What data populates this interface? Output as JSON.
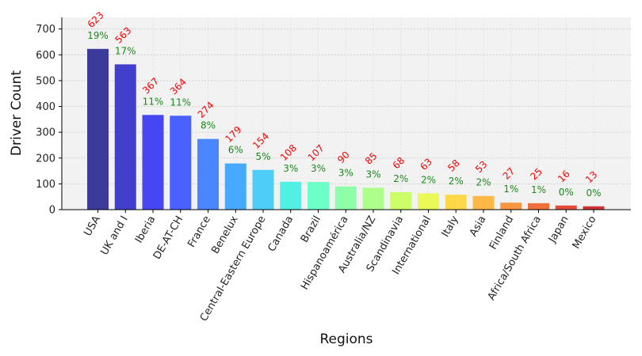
{
  "chart_data": {
    "type": "bar",
    "xlabel": "Regions",
    "ylabel": "Driver Count",
    "categories": [
      "USA",
      "UK and I",
      "Iberia",
      "DE-AT-CH",
      "France",
      "Benelux",
      "Central-Eastern Europe",
      "Canada",
      "Brazil",
      "Hispanoamérica",
      "Australia/NZ",
      "Scandinavia",
      "International",
      "Italy",
      "Asia",
      "Finland",
      "Africa/South Africa",
      "Japan",
      "Mexico"
    ],
    "values": [
      623,
      563,
      367,
      364,
      274,
      179,
      154,
      108,
      107,
      90,
      85,
      68,
      63,
      58,
      53,
      27,
      25,
      16,
      13
    ],
    "value_labels": [
      "623",
      "563",
      "367",
      "364",
      "274",
      "179",
      "154",
      "108",
      "107",
      "90",
      "85",
      "68",
      "63",
      "58",
      "53",
      "27",
      "25",
      "16",
      "13"
    ],
    "percent_labels": [
      "19%",
      "17%",
      "11%",
      "11%",
      "8%",
      "6%",
      "5%",
      "3%",
      "3%",
      "3%",
      "3%",
      "2%",
      "2%",
      "2%",
      "2%",
      "1%",
      "1%",
      "0%",
      "0%"
    ],
    "colors": [
      "#3b3b9b",
      "#4040cc",
      "#4646f2",
      "#4a60ff",
      "#4a86ff",
      "#48aaff",
      "#4ccef8",
      "#52f0e4",
      "#6cffc8",
      "#8cffa8",
      "#abff8a",
      "#cbff6a",
      "#eaf956",
      "#ffd84a",
      "#ffb845",
      "#f69640",
      "#f0703c",
      "#e84a3a",
      "#cd3535"
    ],
    "y_ticks": [
      "0",
      "100",
      "200",
      "300",
      "400",
      "500",
      "600",
      "700"
    ],
    "ylim": [
      0,
      745
    ],
    "grid": true
  }
}
